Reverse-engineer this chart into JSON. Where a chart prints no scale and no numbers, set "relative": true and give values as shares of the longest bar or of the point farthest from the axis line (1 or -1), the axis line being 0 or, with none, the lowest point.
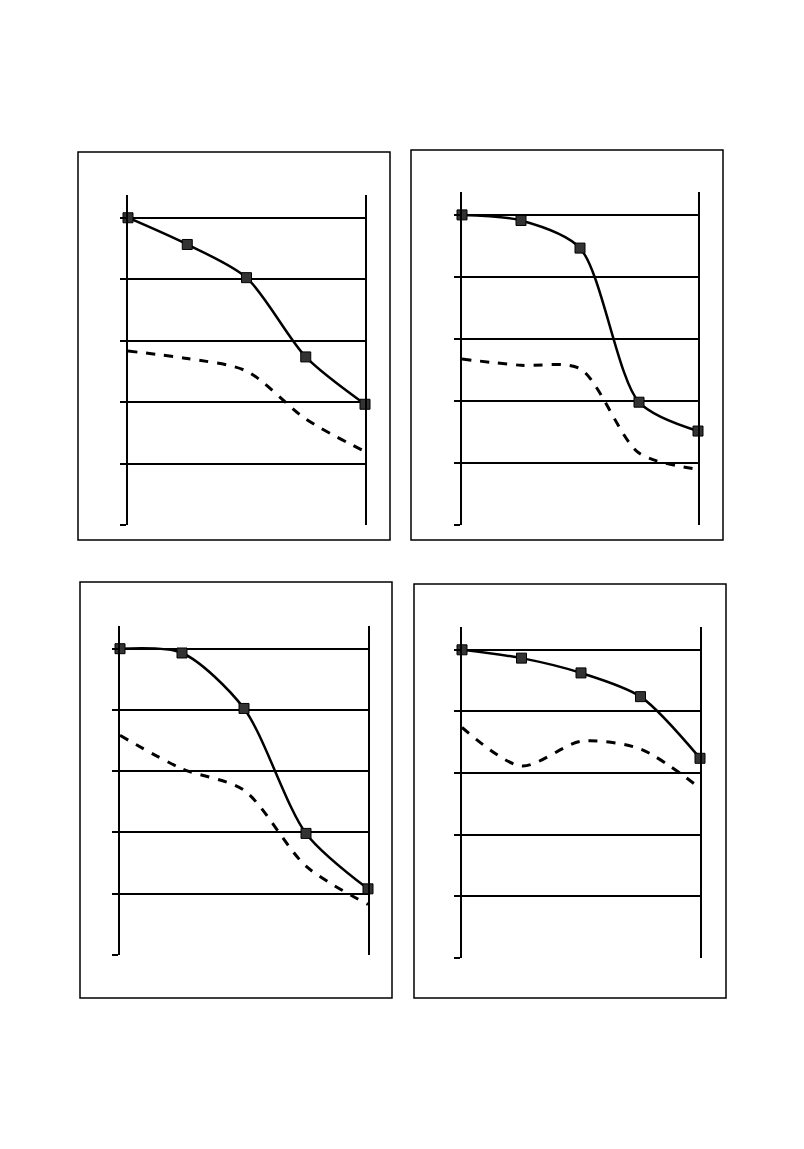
{
  "chart_data": [
    {
      "type": "line",
      "relative": true,
      "grid": true,
      "categories": [
        null,
        null,
        null,
        null,
        null
      ],
      "series": [
        {
          "color": "#000000",
          "marker": "square",
          "line_style": "solid",
          "values": [
            1,
            0.913,
            0.805,
            0.547,
            0.393
          ]
        },
        {
          "color": "#000000",
          "marker": "none",
          "line_style": "dashed",
          "values": [
            0.566,
            0.542,
            0.501,
            0.345,
            0.239
          ]
        }
      ]
    },
    {
      "type": "line",
      "relative": true,
      "grid": true,
      "categories": [
        null,
        null,
        null,
        null,
        null
      ],
      "series": [
        {
          "color": "#000000",
          "marker": "square",
          "line_style": "solid",
          "values": [
            1,
            0.982,
            0.893,
            0.396,
            0.303
          ]
        },
        {
          "color": "#000000",
          "marker": "none",
          "line_style": "dashed",
          "values": [
            0.535,
            0.515,
            0.504,
            0.232,
            0.18
          ]
        }
      ]
    },
    {
      "type": "line",
      "relative": true,
      "grid": true,
      "categories": [
        null,
        null,
        null,
        null,
        null
      ],
      "series": [
        {
          "color": "#000000",
          "marker": "square",
          "line_style": "solid",
          "values": [
            1,
            0.986,
            0.805,
            0.397,
            0.216
          ]
        },
        {
          "color": "#000000",
          "marker": "none",
          "line_style": "dashed",
          "values": [
            0.717,
            0.608,
            0.538,
            0.29,
            0.165
          ]
        }
      ]
    },
    {
      "type": "line",
      "relative": true,
      "grid": true,
      "categories": [
        null,
        null,
        null,
        null,
        null
      ],
      "series": [
        {
          "color": "#000000",
          "marker": "square",
          "line_style": "solid",
          "values": [
            1,
            0.973,
            0.925,
            0.848,
            0.648
          ]
        },
        {
          "color": "#000000",
          "marker": "none",
          "line_style": "dashed",
          "values": [
            0.748,
            0.623,
            0.703,
            0.678,
            0.551
          ]
        }
      ]
    }
  ]
}
